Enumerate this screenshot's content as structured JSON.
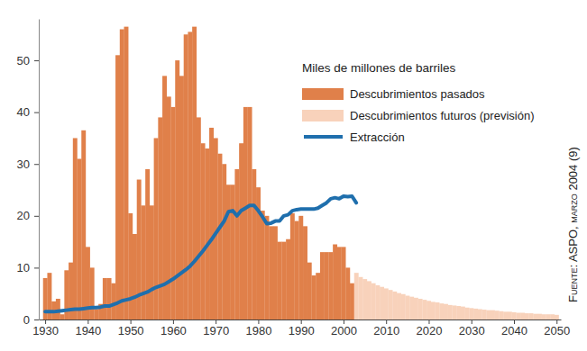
{
  "chart_data": {
    "type": "bar",
    "annotations": [
      "Miles de millones de barriles",
      "Fuente: ASPO, marzo 2004 (9)"
    ],
    "x": [
      1930,
      1931,
      1932,
      1933,
      1934,
      1935,
      1936,
      1937,
      1938,
      1939,
      1940,
      1941,
      1942,
      1943,
      1944,
      1945,
      1946,
      1947,
      1948,
      1949,
      1950,
      1951,
      1952,
      1953,
      1954,
      1955,
      1956,
      1957,
      1958,
      1959,
      1960,
      1961,
      1962,
      1963,
      1964,
      1965,
      1966,
      1967,
      1968,
      1969,
      1970,
      1971,
      1972,
      1973,
      1974,
      1975,
      1976,
      1977,
      1978,
      1979,
      1980,
      1981,
      1982,
      1983,
      1984,
      1985,
      1986,
      1987,
      1988,
      1989,
      1990,
      1991,
      1992,
      1993,
      1994,
      1995,
      1996,
      1997,
      1998,
      1999,
      2000,
      2001,
      2002,
      2003,
      2004,
      2005,
      2006,
      2007,
      2008,
      2009,
      2010,
      2011,
      2012,
      2013,
      2014,
      2015,
      2016,
      2017,
      2018,
      2019,
      2020,
      2021,
      2022,
      2023,
      2024,
      2025,
      2026,
      2027,
      2028,
      2029,
      2030,
      2031,
      2032,
      2033,
      2034,
      2035,
      2036,
      2037,
      2038,
      2039,
      2040,
      2041,
      2042,
      2043,
      2044,
      2045,
      2046,
      2047,
      2048,
      2049,
      2050
    ],
    "xlim": [
      1928.5,
      2051
    ],
    "xticks": [
      1930,
      1940,
      1950,
      1960,
      1970,
      1980,
      1990,
      2000,
      2010,
      2020,
      2030,
      2040,
      2050
    ],
    "ylim": [
      0,
      58
    ],
    "yticks": [
      0,
      10,
      20,
      30,
      40,
      50
    ],
    "grid": false,
    "legend": "top-right",
    "series": [
      {
        "name": "Descubrimientos pasados",
        "type": "bar",
        "color": "#e0804a",
        "values": [
          8,
          9,
          3.5,
          4,
          1,
          9.5,
          11,
          35,
          31,
          36.5,
          14,
          10,
          2,
          3,
          8,
          8,
          7,
          51,
          56,
          56.5,
          20.5,
          16.5,
          27,
          22,
          29,
          22,
          35,
          39,
          47,
          43,
          41,
          50,
          47,
          55,
          55.5,
          56.5,
          39,
          34,
          33,
          37,
          35,
          32,
          30,
          26,
          26,
          29,
          34,
          41,
          41,
          29,
          25.5,
          21,
          20,
          18,
          18,
          15,
          15,
          15.5,
          20.5,
          19,
          20,
          18,
          11,
          8.5,
          9,
          13,
          13,
          13,
          14.5,
          14,
          14,
          10,
          7,
          null,
          null,
          null,
          null,
          null,
          null,
          null,
          null,
          null,
          null,
          null,
          null,
          null,
          null,
          null,
          null,
          null,
          null,
          null,
          null,
          null,
          null,
          null,
          null,
          null,
          null,
          null,
          null,
          null,
          null,
          null,
          null,
          null,
          null,
          null,
          null,
          null,
          null,
          null,
          null,
          null,
          null,
          null,
          null,
          null,
          null,
          null,
          null
        ]
      },
      {
        "name": "Descubrimientos futuros (previsión)",
        "type": "bar",
        "color": "#f8d2bb",
        "values": [
          null,
          null,
          null,
          null,
          null,
          null,
          null,
          null,
          null,
          null,
          null,
          null,
          null,
          null,
          null,
          null,
          null,
          null,
          null,
          null,
          null,
          null,
          null,
          null,
          null,
          null,
          null,
          null,
          null,
          null,
          null,
          null,
          null,
          null,
          null,
          null,
          null,
          null,
          null,
          null,
          null,
          null,
          null,
          null,
          null,
          null,
          null,
          null,
          null,
          null,
          null,
          null,
          null,
          null,
          null,
          null,
          null,
          null,
          null,
          null,
          null,
          null,
          null,
          null,
          null,
          null,
          null,
          null,
          null,
          null,
          null,
          null,
          null,
          9,
          8.2,
          7.8,
          7.4,
          7.0,
          6.6,
          6.3,
          6.0,
          5.7,
          5.4,
          5.1,
          4.9,
          4.6,
          4.4,
          4.2,
          4.0,
          3.8,
          3.6,
          3.4,
          3.3,
          3.1,
          3.0,
          2.8,
          2.7,
          2.6,
          2.5,
          2.3,
          2.2,
          2.1,
          2.0,
          1.9,
          1.8,
          1.8,
          1.7,
          1.6,
          1.5,
          1.5,
          1.4,
          1.3,
          1.3,
          1.2,
          1.2,
          1.1,
          1.1,
          1.0,
          1.0,
          1.0,
          0.9
        ]
      },
      {
        "name": "Extracción",
        "type": "line",
        "color": "#1f6fad",
        "values": [
          1.5,
          1.5,
          1.5,
          1.6,
          1.7,
          1.8,
          1.9,
          2.0,
          2.0,
          2.1,
          2.2,
          2.3,
          2.3,
          2.4,
          2.6,
          2.6,
          2.9,
          3.2,
          3.6,
          3.8,
          4.0,
          4.3,
          4.7,
          5.0,
          5.3,
          5.8,
          6.2,
          6.5,
          6.8,
          7.3,
          7.8,
          8.4,
          9.0,
          9.6,
          10.3,
          11.2,
          12.2,
          13.2,
          14.3,
          15.4,
          16.6,
          17.8,
          19.0,
          20.8,
          21.0,
          20.0,
          21.0,
          21.5,
          22.0,
          22.0,
          21.0,
          19.8,
          18.5,
          18.6,
          19.0,
          19.0,
          20.0,
          20.2,
          21.0,
          21.2,
          21.3,
          21.3,
          21.3,
          21.3,
          21.5,
          22.0,
          22.5,
          23.3,
          23.5,
          23.3,
          23.8,
          23.7,
          23.8,
          22.5,
          null,
          null,
          null,
          null,
          null,
          null,
          null,
          null,
          null,
          null,
          null,
          null,
          null,
          null,
          null,
          null,
          null,
          null,
          null,
          null,
          null,
          null,
          null,
          null,
          null,
          null,
          null,
          null,
          null,
          null,
          null,
          null,
          null,
          null,
          null,
          null,
          null,
          null,
          null,
          null,
          null,
          null,
          null,
          null,
          null,
          null,
          null
        ]
      }
    ]
  }
}
